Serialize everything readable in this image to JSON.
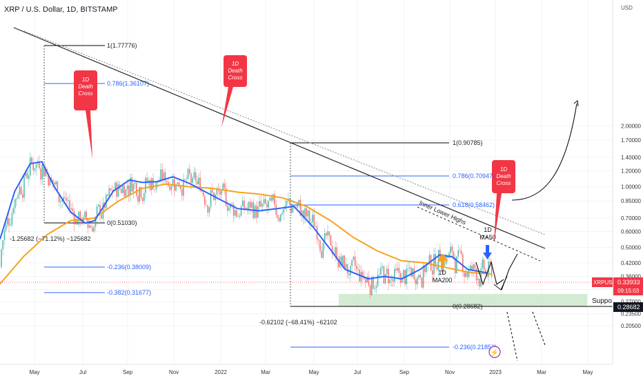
{
  "header": {
    "title": "XRP / U.S. Dollar, 1D, BITSTAMP"
  },
  "colors": {
    "candle_up": "#26a69a",
    "candle_down": "#ef5350",
    "ma50": "#2962ff",
    "ma200": "#f5a21b",
    "fib": "#2962ff",
    "label_red": "#f23645",
    "support_fill": "#c8e6c9",
    "price_tag": "#f23645"
  },
  "price_axis": {
    "currency": "USD",
    "ticks": [
      "2.00000",
      "1.70000",
      "1.40000",
      "1.20000",
      "1.00000",
      "0.85000",
      "0.70000",
      "0.60000",
      "0.50000",
      "0.42000",
      "0.36000",
      "0.31000",
      "0.27000",
      "0.23500",
      "0.20500"
    ],
    "symbol_tag": "XRPUSD",
    "last_price": "0.33933",
    "countdown": "09:15:03",
    "support_price": "0.28682"
  },
  "time_axis": {
    "ticks": [
      "May",
      "Jul",
      "Sep",
      "Nov",
      "2022",
      "Mar",
      "May",
      "Jul",
      "Sep",
      "Nov",
      "2023",
      "Mar",
      "May"
    ]
  },
  "fib_levels": {
    "upper": [
      "1(1.77776)",
      "0.786(1.36107)",
      "0(0.51030)",
      "-0.236(0.38009)",
      "-0.382(0.31677)"
    ],
    "lower": [
      "1(0.90785)",
      "0.786(0.70947)",
      "0.618(0.58462)",
      "0(0.28682)",
      "-0.236(0.21852)"
    ]
  },
  "measures": {
    "first": "-1.25682 (−71.12%) −125682",
    "second": "-0.62102 (−68.41%) −62102"
  },
  "callouts": {
    "death_cross": [
      "1D",
      "Death",
      "Cross"
    ],
    "ma200": [
      "1D",
      "MA200"
    ],
    "ma50": [
      "1D",
      "MA50"
    ],
    "inner_lower_highs": "Inner Lower Highs",
    "support": "Support"
  },
  "chart_data": {
    "type": "candlestick",
    "title": "XRP / U.S. Dollar, 1D, BITSTAMP",
    "y_scale": "log",
    "ylim": [
      0.2,
      2.2
    ],
    "x_range": [
      "2021-04-01",
      "2023-05-31"
    ],
    "series": [
      {
        "name": "1D MA50",
        "points": [
          [
            "2021-04-01",
            0.55
          ],
          [
            "2021-04-20",
            0.95
          ],
          [
            "2021-05-10",
            1.3
          ],
          [
            "2021-05-25",
            1.33
          ],
          [
            "2021-06-10",
            1.0
          ],
          [
            "2021-07-01",
            0.75
          ],
          [
            "2021-07-20",
            0.66
          ],
          [
            "2021-08-01",
            0.68
          ],
          [
            "2021-08-25",
            0.95
          ],
          [
            "2021-09-15",
            1.08
          ],
          [
            "2021-10-01",
            1.05
          ],
          [
            "2021-10-20",
            1.06
          ],
          [
            "2021-11-10",
            1.12
          ],
          [
            "2021-12-01",
            1.04
          ],
          [
            "2022-01-01",
            0.9
          ],
          [
            "2022-02-01",
            0.78
          ],
          [
            "2022-03-01",
            0.76
          ],
          [
            "2022-03-25",
            0.78
          ],
          [
            "2022-04-15",
            0.8
          ],
          [
            "2022-05-10",
            0.63
          ],
          [
            "2022-06-01",
            0.49
          ],
          [
            "2022-06-20",
            0.39
          ],
          [
            "2022-07-20",
            0.35
          ],
          [
            "2022-08-10",
            0.36
          ],
          [
            "2022-09-01",
            0.35
          ],
          [
            "2022-09-25",
            0.39
          ],
          [
            "2022-10-20",
            0.46
          ],
          [
            "2022-11-05",
            0.45
          ],
          [
            "2022-11-25",
            0.39
          ],
          [
            "2022-12-20",
            0.375
          ]
        ]
      },
      {
        "name": "1D MA200",
        "points": [
          [
            "2021-04-01",
            0.33
          ],
          [
            "2021-05-01",
            0.45
          ],
          [
            "2021-06-01",
            0.58
          ],
          [
            "2021-07-01",
            0.68
          ],
          [
            "2021-08-01",
            0.7
          ],
          [
            "2021-09-01",
            0.85
          ],
          [
            "2021-10-01",
            0.98
          ],
          [
            "2021-11-01",
            1.03
          ],
          [
            "2021-12-01",
            1.0
          ],
          [
            "2022-01-01",
            0.98
          ],
          [
            "2022-02-01",
            0.94
          ],
          [
            "2022-03-01",
            0.92
          ],
          [
            "2022-04-01",
            0.88
          ],
          [
            "2022-05-01",
            0.8
          ],
          [
            "2022-06-01",
            0.68
          ],
          [
            "2022-07-01",
            0.56
          ],
          [
            "2022-08-01",
            0.48
          ],
          [
            "2022-09-01",
            0.43
          ],
          [
            "2022-10-01",
            0.42
          ],
          [
            "2022-11-01",
            0.395
          ],
          [
            "2022-12-01",
            0.375
          ],
          [
            "2022-12-26",
            0.37
          ]
        ]
      }
    ],
    "last_price": 0.33933
  }
}
